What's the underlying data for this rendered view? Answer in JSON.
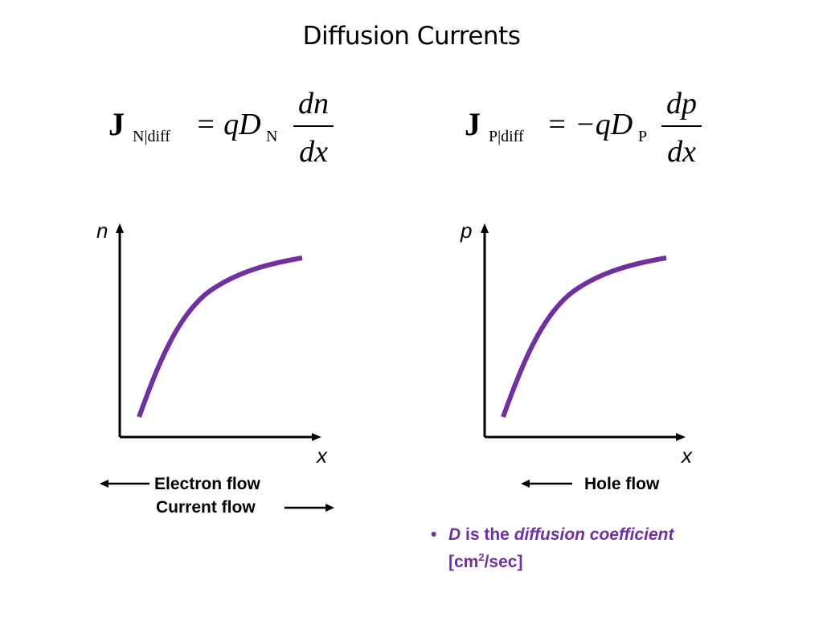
{
  "slide": {
    "title": "Diffusion Currents"
  },
  "equations": {
    "electron": {
      "J": "J",
      "subscript": "N|diff",
      "rhs_prefix": "= qD",
      "d_subscript": "N",
      "numerator": "dn",
      "denominator": "dx"
    },
    "hole": {
      "J": "J",
      "subscript": "P|diff",
      "rhs_prefix": "= −qD",
      "d_subscript": "P",
      "numerator": "dp",
      "denominator": "dx"
    }
  },
  "plots": {
    "electron": {
      "y_label": "n",
      "x_label": "x"
    },
    "hole": {
      "y_label": "p",
      "x_label": "x"
    },
    "curve_color": "#7030a0",
    "axis_color": "#000000"
  },
  "flows": {
    "electron_flow": "Electron flow",
    "current_flow": "Current flow",
    "hole_flow": "Hole flow"
  },
  "note": {
    "bullet": "•",
    "symbol": "D",
    "connector": " is the ",
    "term": "diffusion coefficient",
    "units_open": "[cm",
    "units_sup": "2",
    "units_close": "/sec]"
  },
  "colors": {
    "accent": "#7030a0",
    "text": "#000000",
    "background": "#ffffff"
  }
}
